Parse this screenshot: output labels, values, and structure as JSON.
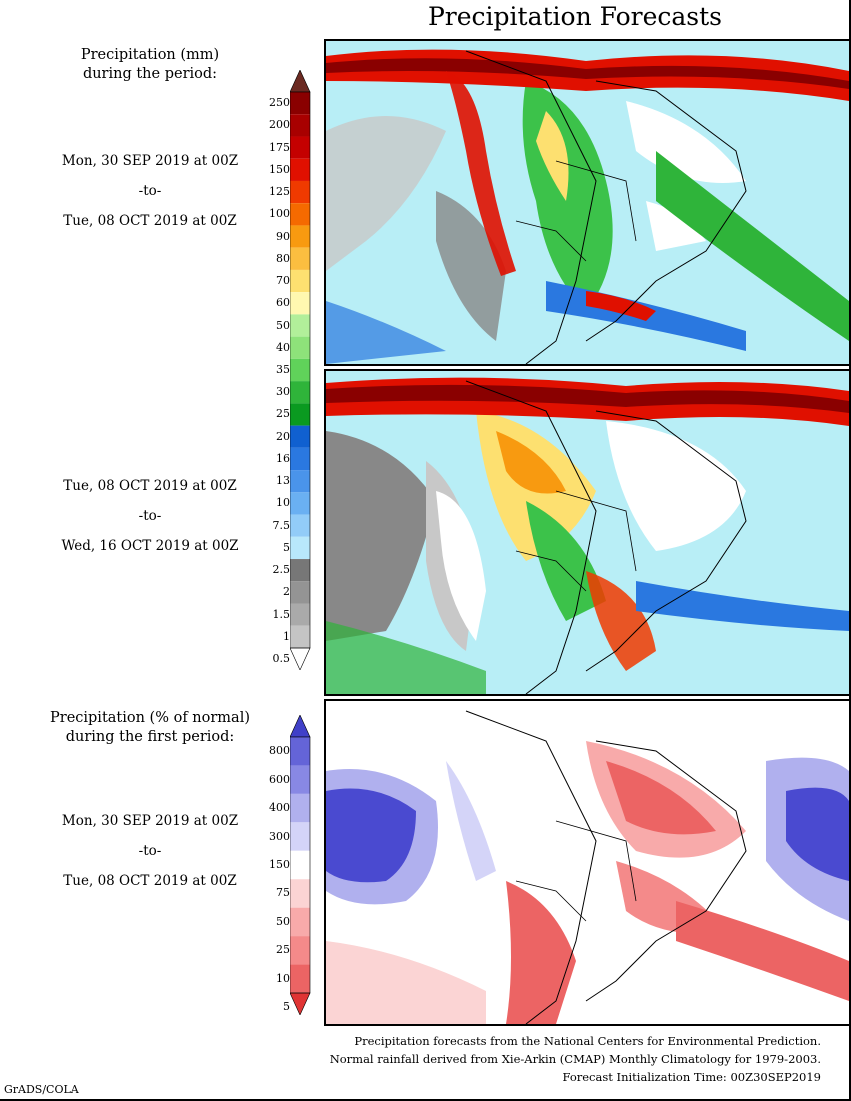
{
  "title": "Precipitation Forecasts",
  "mm_label": [
    "Precipitation (mm)",
    "during the period:"
  ],
  "pct_label": [
    "Precipitation (% of normal)",
    "during the first period:"
  ],
  "period1": {
    "start": "Mon, 30 SEP 2019 at 00Z",
    "sep": "-to-",
    "end": "Tue, 08 OCT 2019 at 00Z"
  },
  "period2": {
    "start": "Tue, 08 OCT 2019 at 00Z",
    "sep": "-to-",
    "end": "Wed, 16 OCT 2019 at 00Z"
  },
  "period3": {
    "start": "Mon, 30 SEP 2019 at 00Z",
    "sep": "-to-",
    "end": "Tue, 08 OCT 2019 at 00Z"
  },
  "mm_scale": {
    "labels": [
      "250",
      "200",
      "175",
      "150",
      "125",
      "100",
      "90",
      "80",
      "70",
      "60",
      "50",
      "40",
      "35",
      "30",
      "25",
      "20",
      "16",
      "13",
      "10",
      "7.5",
      "5",
      "2.5",
      "2",
      "1.5",
      "1",
      "0.5"
    ],
    "colors": [
      "#6b2a22",
      "#8a0000",
      "#a80000",
      "#c40000",
      "#e01000",
      "#f03a00",
      "#f56a00",
      "#f89a10",
      "#fbbe40",
      "#fde070",
      "#fff8b0",
      "#b2ef9a",
      "#8ee27a",
      "#60d25a",
      "#2fb43a",
      "#0a9a20",
      "#1060d0",
      "#2a78e0",
      "#4a94ea",
      "#6ab0f2",
      "#92ccf8",
      "#b8e8fb",
      "#777777",
      "#949494",
      "#aaaaaa",
      "#c4c4c4",
      "#ffffff"
    ]
  },
  "pct_scale": {
    "labels": [
      "800",
      "600",
      "400",
      "300",
      "150",
      "75",
      "50",
      "25",
      "10",
      "5"
    ],
    "colors": [
      "#4040c8",
      "#6464d8",
      "#8888e4",
      "#b0b0ee",
      "#d4d4f8",
      "#ffffff",
      "#fbd4d4",
      "#f8aaaa",
      "#f48a8a",
      "#ec6464",
      "#e03434"
    ]
  },
  "footer": [
    "Precipitation forecasts from the National Centers for Environmental Prediction.",
    "Normal rainfall derived from Xie-Arkin (CMAP) Monthly Climatology for 1979-2003.",
    "Forecast Initialization Time: 00Z30SEP2019"
  ],
  "credit": "GrADS/COLA"
}
